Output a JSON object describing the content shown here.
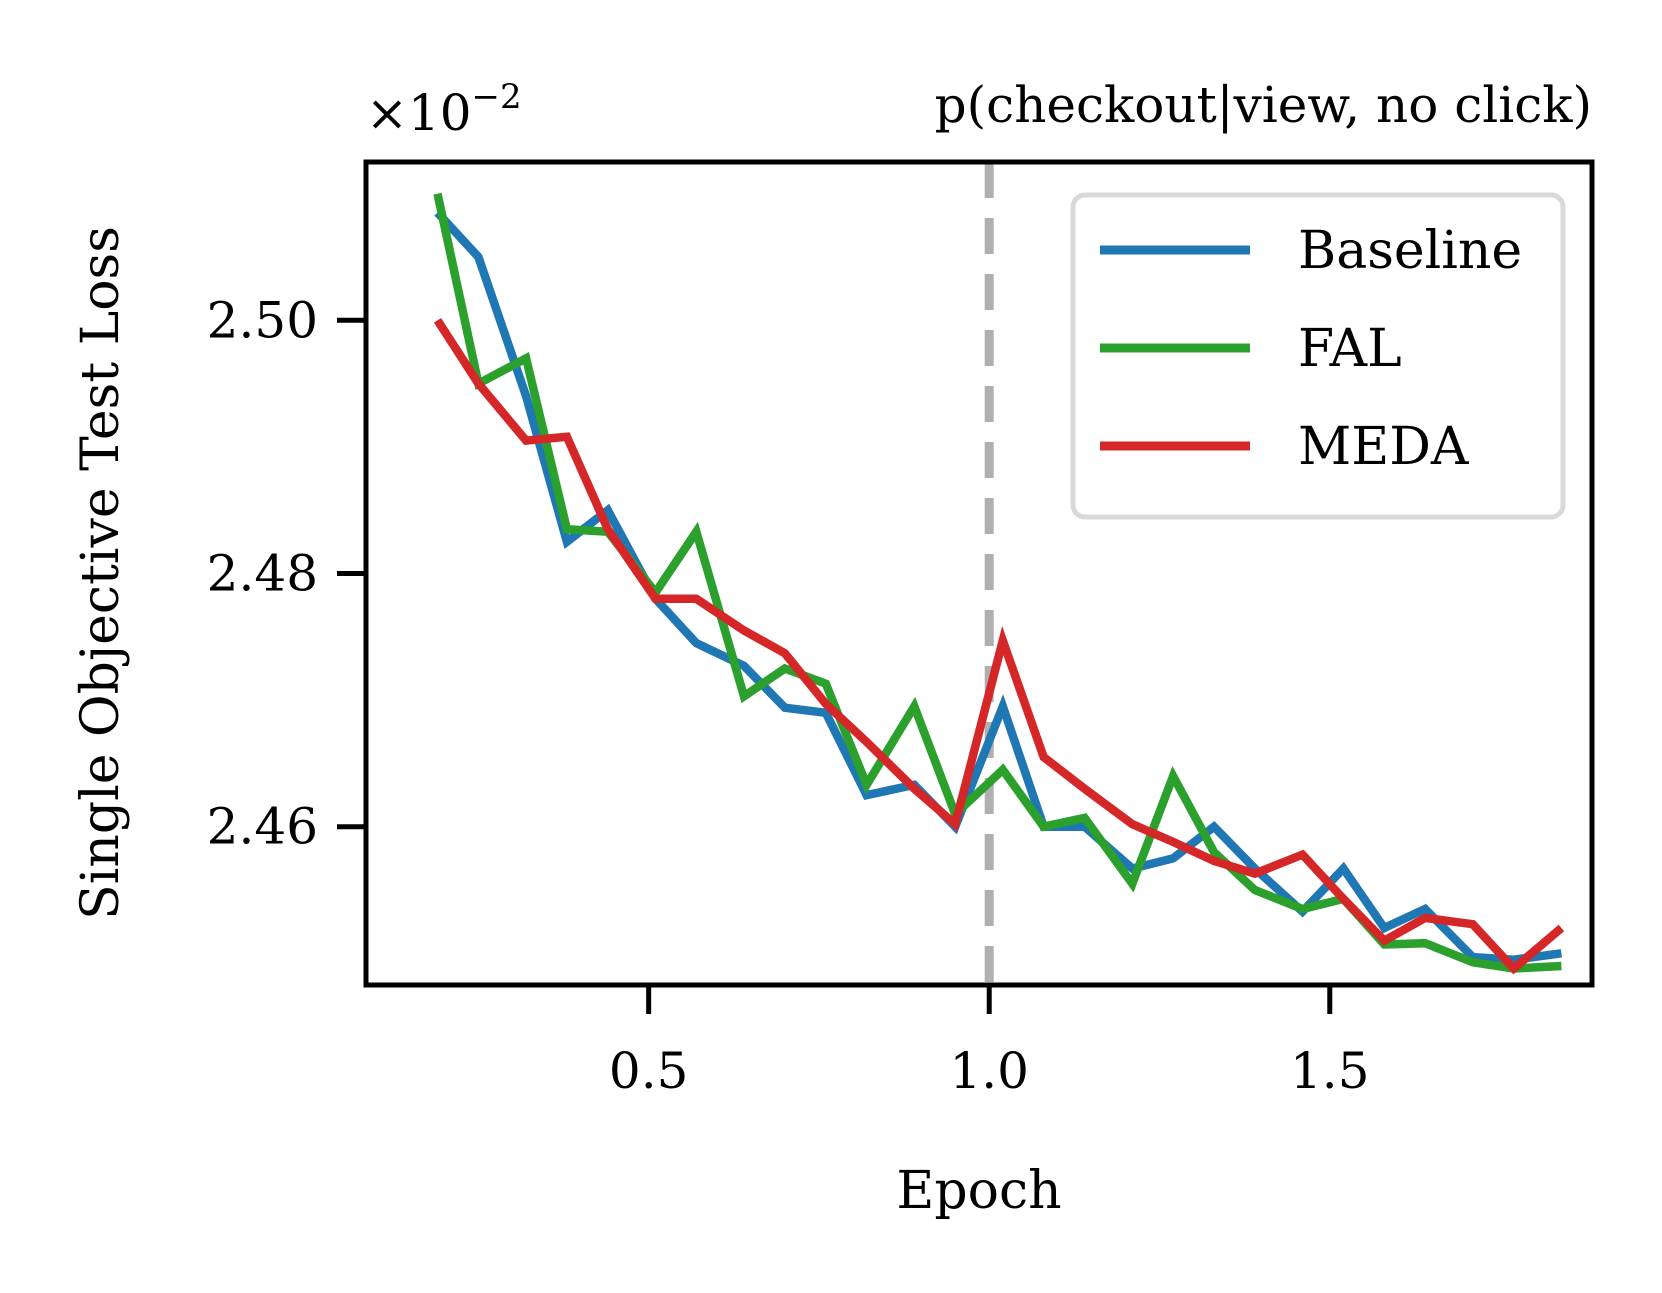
{
  "chart_data": {
    "type": "line",
    "title": "p(checkout|view, no click)",
    "offset_label": "×10",
    "offset_exponent": "−2",
    "xlabel": "Epoch",
    "ylabel": "Single Objective Test Loss",
    "xlim": [
      0.085,
      1.885
    ],
    "ylim": [
      2.4475,
      2.5125
    ],
    "x_ticks": [
      {
        "value": 0.5,
        "label": "0.5"
      },
      {
        "value": 1.0,
        "label": "1.0"
      },
      {
        "value": 1.5,
        "label": "1.5"
      }
    ],
    "y_ticks": [
      {
        "value": 2.46,
        "label": "2.46"
      },
      {
        "value": 2.48,
        "label": "2.48"
      },
      {
        "value": 2.5,
        "label": "2.50"
      }
    ],
    "vline": {
      "x": 1.0,
      "style": "dashed",
      "color": "#b0b0b0"
    },
    "legend": {
      "position": "top-right"
    },
    "x": [
      0.19,
      0.25,
      0.32,
      0.38,
      0.44,
      0.51,
      0.57,
      0.64,
      0.7,
      0.76,
      0.82,
      0.89,
      0.95,
      1.02,
      1.08,
      1.14,
      1.21,
      1.27,
      1.33,
      1.39,
      1.46,
      1.52,
      1.58,
      1.64,
      1.71,
      1.77,
      1.84
    ],
    "series": [
      {
        "name": "Baseline",
        "color": "#1f77b4",
        "values": [
          2.5085,
          2.505,
          2.494,
          2.4825,
          2.485,
          2.478,
          2.4745,
          2.4727,
          2.4694,
          2.469,
          2.4625,
          2.4633,
          2.46,
          2.4695,
          2.46,
          2.46,
          2.4567,
          2.4575,
          2.46,
          2.4567,
          2.4533,
          2.4567,
          2.452,
          2.4535,
          2.4497,
          2.4495,
          2.45
        ]
      },
      {
        "name": "FAL",
        "color": "#2ca02c",
        "values": [
          2.51,
          2.495,
          2.497,
          2.4835,
          2.4833,
          2.4785,
          2.4833,
          2.4703,
          2.4725,
          2.4713,
          2.4633,
          2.4695,
          2.461,
          2.4645,
          2.46,
          2.4607,
          2.4555,
          2.464,
          2.458,
          2.455,
          2.4535,
          2.4543,
          2.4507,
          2.4508,
          2.4493,
          2.4488,
          2.449
        ]
      },
      {
        "name": "MEDA",
        "color": "#d62728",
        "values": [
          2.5,
          2.495,
          2.4905,
          2.4908,
          2.4835,
          2.478,
          2.478,
          2.4755,
          2.4737,
          2.4697,
          2.4667,
          2.463,
          2.4602,
          2.4747,
          2.4655,
          2.463,
          2.4602,
          2.4588,
          2.4573,
          2.4563,
          2.4578,
          2.4543,
          2.451,
          2.4528,
          2.4523,
          2.4488,
          2.452
        ]
      }
    ]
  }
}
